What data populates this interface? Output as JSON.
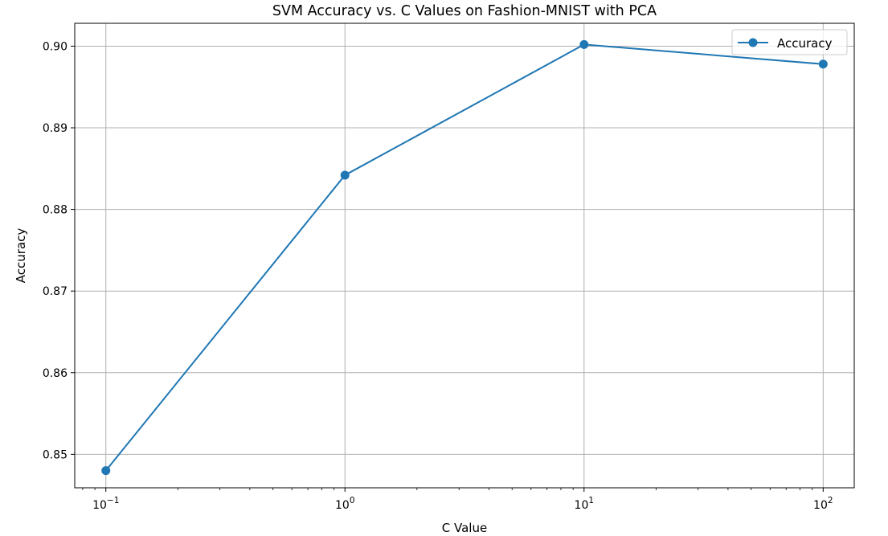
{
  "chart_data": {
    "type": "line",
    "title": "SVM Accuracy vs. C Values on Fashion-MNIST with PCA",
    "xlabel": "C Value",
    "ylabel": "Accuracy",
    "x_scale": "log",
    "x_tick_labels": [
      {
        "value": 0.1,
        "base": "10",
        "exp": "−1"
      },
      {
        "value": 1,
        "base": "10",
        "exp": "0"
      },
      {
        "value": 10,
        "base": "10",
        "exp": "1"
      },
      {
        "value": 100,
        "base": "10",
        "exp": "2"
      }
    ],
    "y_ticks": [
      0.85,
      0.86,
      0.87,
      0.88,
      0.89,
      0.9
    ],
    "y_tick_labels": [
      "0.85",
      "0.86",
      "0.87",
      "0.88",
      "0.89",
      "0.90"
    ],
    "xlim": [
      0.0741,
      134.9
    ],
    "ylim": [
      0.8459,
      0.9028
    ],
    "grid": true,
    "legend_position": "top-right",
    "series": [
      {
        "name": "Accuracy",
        "color": "#1f77b4",
        "marker": "circle",
        "x": [
          0.1,
          1,
          10,
          100
        ],
        "y": [
          0.848,
          0.8842,
          0.9002,
          0.8978
        ]
      }
    ]
  }
}
